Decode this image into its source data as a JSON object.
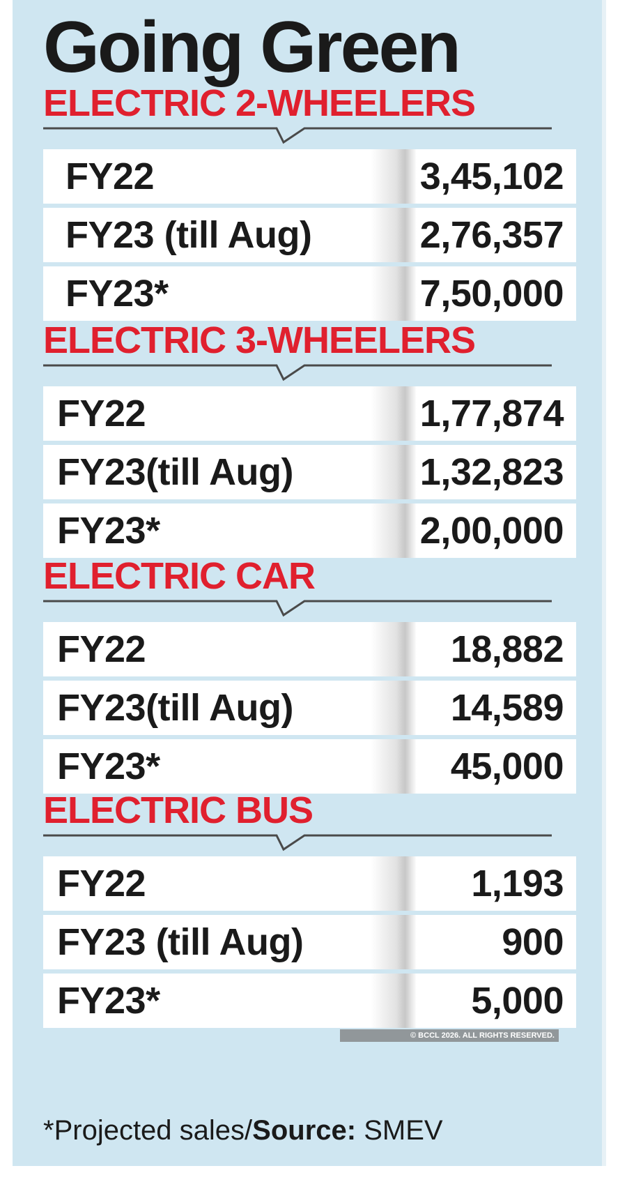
{
  "title": "Going Green",
  "sections": [
    {
      "title": "ELECTRIC 2-WHEELERS",
      "rows": [
        {
          "label": "FY22",
          "value": "3,45,102"
        },
        {
          "label": "FY23 (till Aug)",
          "value": "2,76,357"
        },
        {
          "label": "FY23*",
          "value": "7,50,000"
        }
      ]
    },
    {
      "title": "ELECTRIC 3-WHEELERS",
      "rows": [
        {
          "label": "FY22",
          "value": "1,77,874"
        },
        {
          "label": "FY23(till Aug)",
          "value": "1,32,823"
        },
        {
          "label": "FY23*",
          "value": "2,00,000"
        }
      ]
    },
    {
      "title": "ELECTRIC CAR",
      "rows": [
        {
          "label": "FY22",
          "value": "18,882"
        },
        {
          "label": "FY23(till Aug)",
          "value": "14,589"
        },
        {
          "label": "FY23*",
          "value": "45,000"
        }
      ]
    },
    {
      "title": "ELECTRIC BUS",
      "rows": [
        {
          "label": "FY22",
          "value": "1,193"
        },
        {
          "label": "FY23 (till Aug)",
          "value": "900"
        },
        {
          "label": "FY23*",
          "value": "5,000"
        }
      ]
    }
  ],
  "footnote": {
    "prefix": "*Projected sales/",
    "source_label": "Source:",
    "source_value": " SMEV"
  },
  "copyright": "© BCCL 2026. ALL RIGHTS RESERVED.",
  "colors": {
    "background": "#cfe6f1",
    "section_title": "#e0202e",
    "text": "#1a1a1a",
    "row_background": "#ffffff"
  }
}
